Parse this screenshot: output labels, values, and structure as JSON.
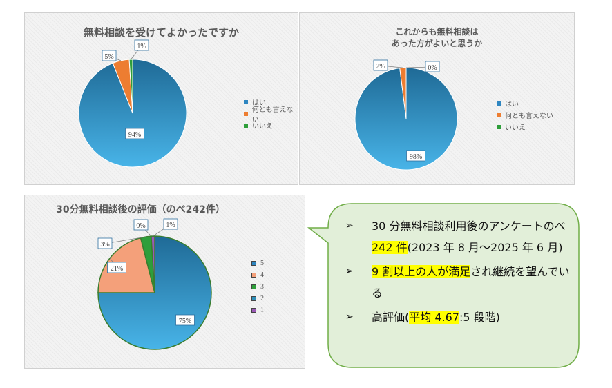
{
  "chart_data": [
    {
      "type": "pie",
      "title": "無料相談を受けてよかったですか",
      "categories": [
        "はい",
        "何とも言えない",
        "いいえ"
      ],
      "values": [
        94,
        5,
        1
      ],
      "labels": [
        "94%",
        "5%",
        "1%"
      ],
      "colors": [
        "#2e86c1",
        "#ed7d31",
        "#2e9e3a"
      ],
      "legend": "right"
    },
    {
      "type": "pie",
      "title_lines": [
        "これからも無料相談は",
        "あった方がよいと思うか"
      ],
      "categories": [
        "はい",
        "何とも言えない",
        "いいえ"
      ],
      "values": [
        98,
        2,
        0
      ],
      "labels": [
        "98%",
        "2%",
        "0%"
      ],
      "colors": [
        "#2e86c1",
        "#ed7d31",
        "#2e9e3a"
      ],
      "legend": "right"
    },
    {
      "type": "pie",
      "title": "30分無料相談後の評価（のべ242件）",
      "categories": [
        "5",
        "4",
        "3",
        "2",
        "1"
      ],
      "values": [
        75,
        21,
        3,
        0,
        1
      ],
      "labels": [
        "75%",
        "21%",
        "3%",
        "0%",
        "1%"
      ],
      "colors": [
        "#2e86c1",
        "#f4a07a",
        "#2e9e3a",
        "#2f8fb8",
        "#9b59b6"
      ],
      "legend": "right"
    }
  ],
  "summary": {
    "items": [
      [
        {
          "t": "30 分無料相談利用後のアンケートのべ "
        },
        {
          "t": "242 件",
          "hl": true
        },
        {
          "t": "(2023 年 8 月～2025 年 6 月)"
        }
      ],
      [
        {
          "t": "9 割以上の人が満足",
          "hl": true
        },
        {
          "t": "され継続を望んでいる"
        }
      ],
      [
        {
          "t": "高評価("
        },
        {
          "t": "平均 4.67",
          "hl": true
        },
        {
          "t": ":5 段階)"
        }
      ]
    ],
    "bullet_glyph": "➢",
    "bubble_fill": "#e2efd9",
    "bubble_stroke": "#70ad47"
  }
}
